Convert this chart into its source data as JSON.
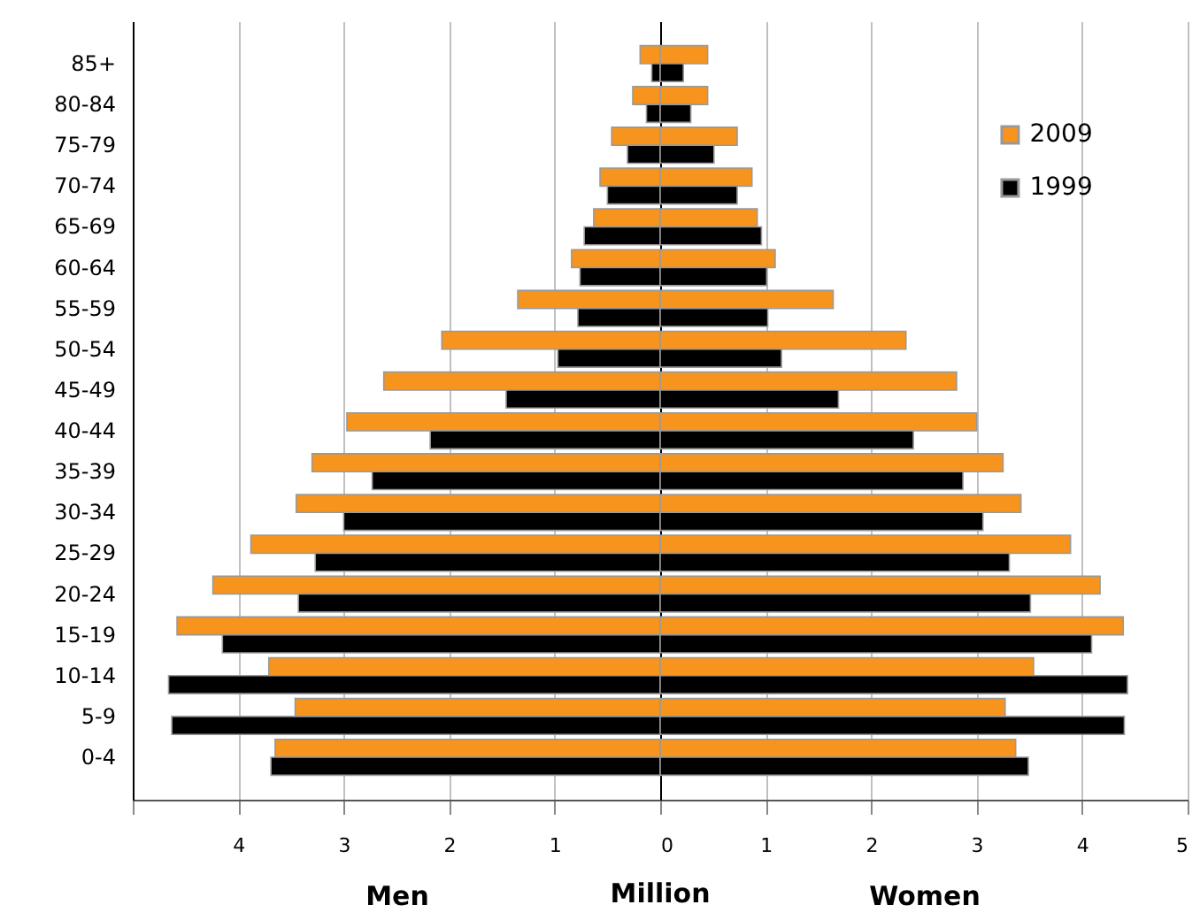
{
  "chart_data": [
    {
      "type": "bar",
      "orientation": "horizontal",
      "xlabel": "Men",
      "categories": [
        "85+",
        "80-84",
        "75-79",
        "70-74",
        "65-69",
        "60-64",
        "55-59",
        "50-54",
        "45-49",
        "40-44",
        "35-39",
        "30-34",
        "25-29",
        "20-24",
        "15-19",
        "10-14",
        "5-9",
        "0-4"
      ],
      "series": [
        {
          "color": "#f7941d",
          "values": [
            0.19,
            0.26,
            0.46,
            0.57,
            0.63,
            0.84,
            1.35,
            2.07,
            2.62,
            2.97,
            3.3,
            3.45,
            3.88,
            4.24,
            4.58,
            3.71,
            3.46,
            3.65
          ]
        },
        {
          "color": "#000000",
          "values": [
            0.08,
            0.13,
            0.31,
            0.5,
            0.72,
            0.76,
            0.78,
            0.97,
            1.46,
            2.18,
            2.73,
            3.0,
            3.27,
            3.43,
            4.15,
            4.66,
            4.63,
            3.69
          ]
        }
      ],
      "xlim": [
        5,
        0
      ],
      "xticks": [
        {
          "value": 5,
          "label": null
        },
        4,
        3,
        2,
        1,
        {
          "value": 0,
          "label": null
        }
      ],
      "grid": "x"
    },
    {
      "type": "bar",
      "orientation": "horizontal",
      "xlabel": "Women",
      "annotations": [
        "Million"
      ],
      "categories": [
        null,
        null,
        null,
        null,
        null,
        null,
        null,
        null,
        null,
        null,
        null,
        null,
        null,
        null,
        null,
        null,
        null,
        null
      ],
      "series": [
        {
          "name": "2009",
          "color": "#f7941d",
          "values": [
            0.45,
            0.45,
            0.73,
            0.87,
            0.92,
            1.09,
            1.64,
            2.33,
            2.81,
            3.0,
            3.25,
            3.42,
            3.89,
            4.17,
            4.39,
            3.54,
            3.27,
            3.37
          ]
        },
        {
          "name": "1999",
          "color": "#000000",
          "values": [
            0.22,
            0.29,
            0.51,
            0.73,
            0.96,
            1.01,
            1.02,
            1.15,
            1.69,
            2.4,
            2.87,
            3.06,
            3.31,
            3.51,
            4.09,
            4.43,
            4.4,
            3.49
          ]
        }
      ],
      "xlim": [
        0,
        5
      ],
      "xticks": [
        0,
        1,
        2,
        3,
        4,
        5
      ],
      "grid": "x",
      "legend": "right",
      "tick_labels": "x"
    }
  ]
}
